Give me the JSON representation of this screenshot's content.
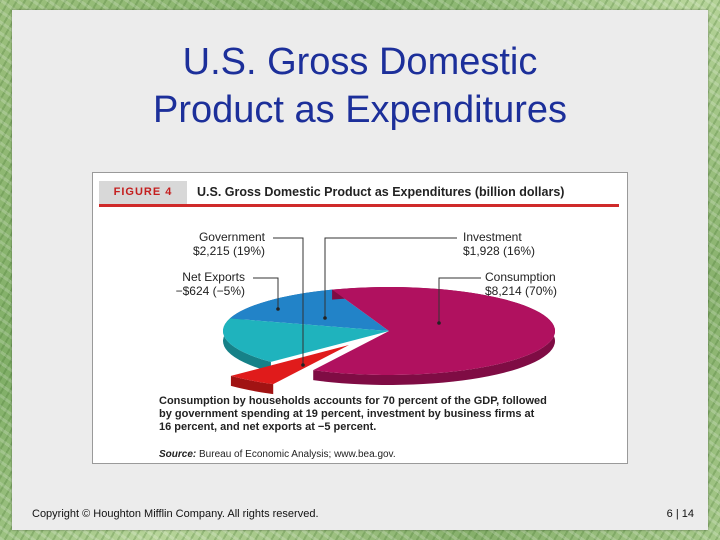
{
  "slide": {
    "title_line1": "U.S. Gross Domestic",
    "title_line2": "Product as Expenditures",
    "copyright": "Copyright © Houghton Mifflin Company.  All rights reserved.",
    "page_number": "6 | 14"
  },
  "figure": {
    "label": "FIGURE 4",
    "caption": "Consumption by households accounts for 70 percent of the GDP, followed by government spending at 19 percent, investment by business firms at 16 percent, and net exports at −5 percent.",
    "source_label": "Source:",
    "source_text": "Bureau of Economic Analysis; www.bea.gov."
  },
  "chart_data": {
    "type": "pie",
    "title": "U.S. Gross Domestic Product as Expenditures (billion dollars)",
    "unit": "billion dollars",
    "slices": [
      {
        "name": "Consumption",
        "value": 8214,
        "value_label": "$8,214",
        "percent_label": "(70%)",
        "percent": 70,
        "color": "#b0115f"
      },
      {
        "name": "Investment",
        "value": 1928,
        "value_label": "$1,928",
        "percent_label": "(16%)",
        "percent": 16,
        "color": "#2283c8"
      },
      {
        "name": "Government",
        "value": 2215,
        "value_label": "$2,215",
        "percent_label": "(19%)",
        "percent": 19,
        "color": "#1fb3bd"
      },
      {
        "name": "Net Exports",
        "value": -624,
        "value_label": "−$624",
        "percent_label": "(−5%)",
        "percent": -5,
        "color": "#e01b1b"
      }
    ]
  }
}
